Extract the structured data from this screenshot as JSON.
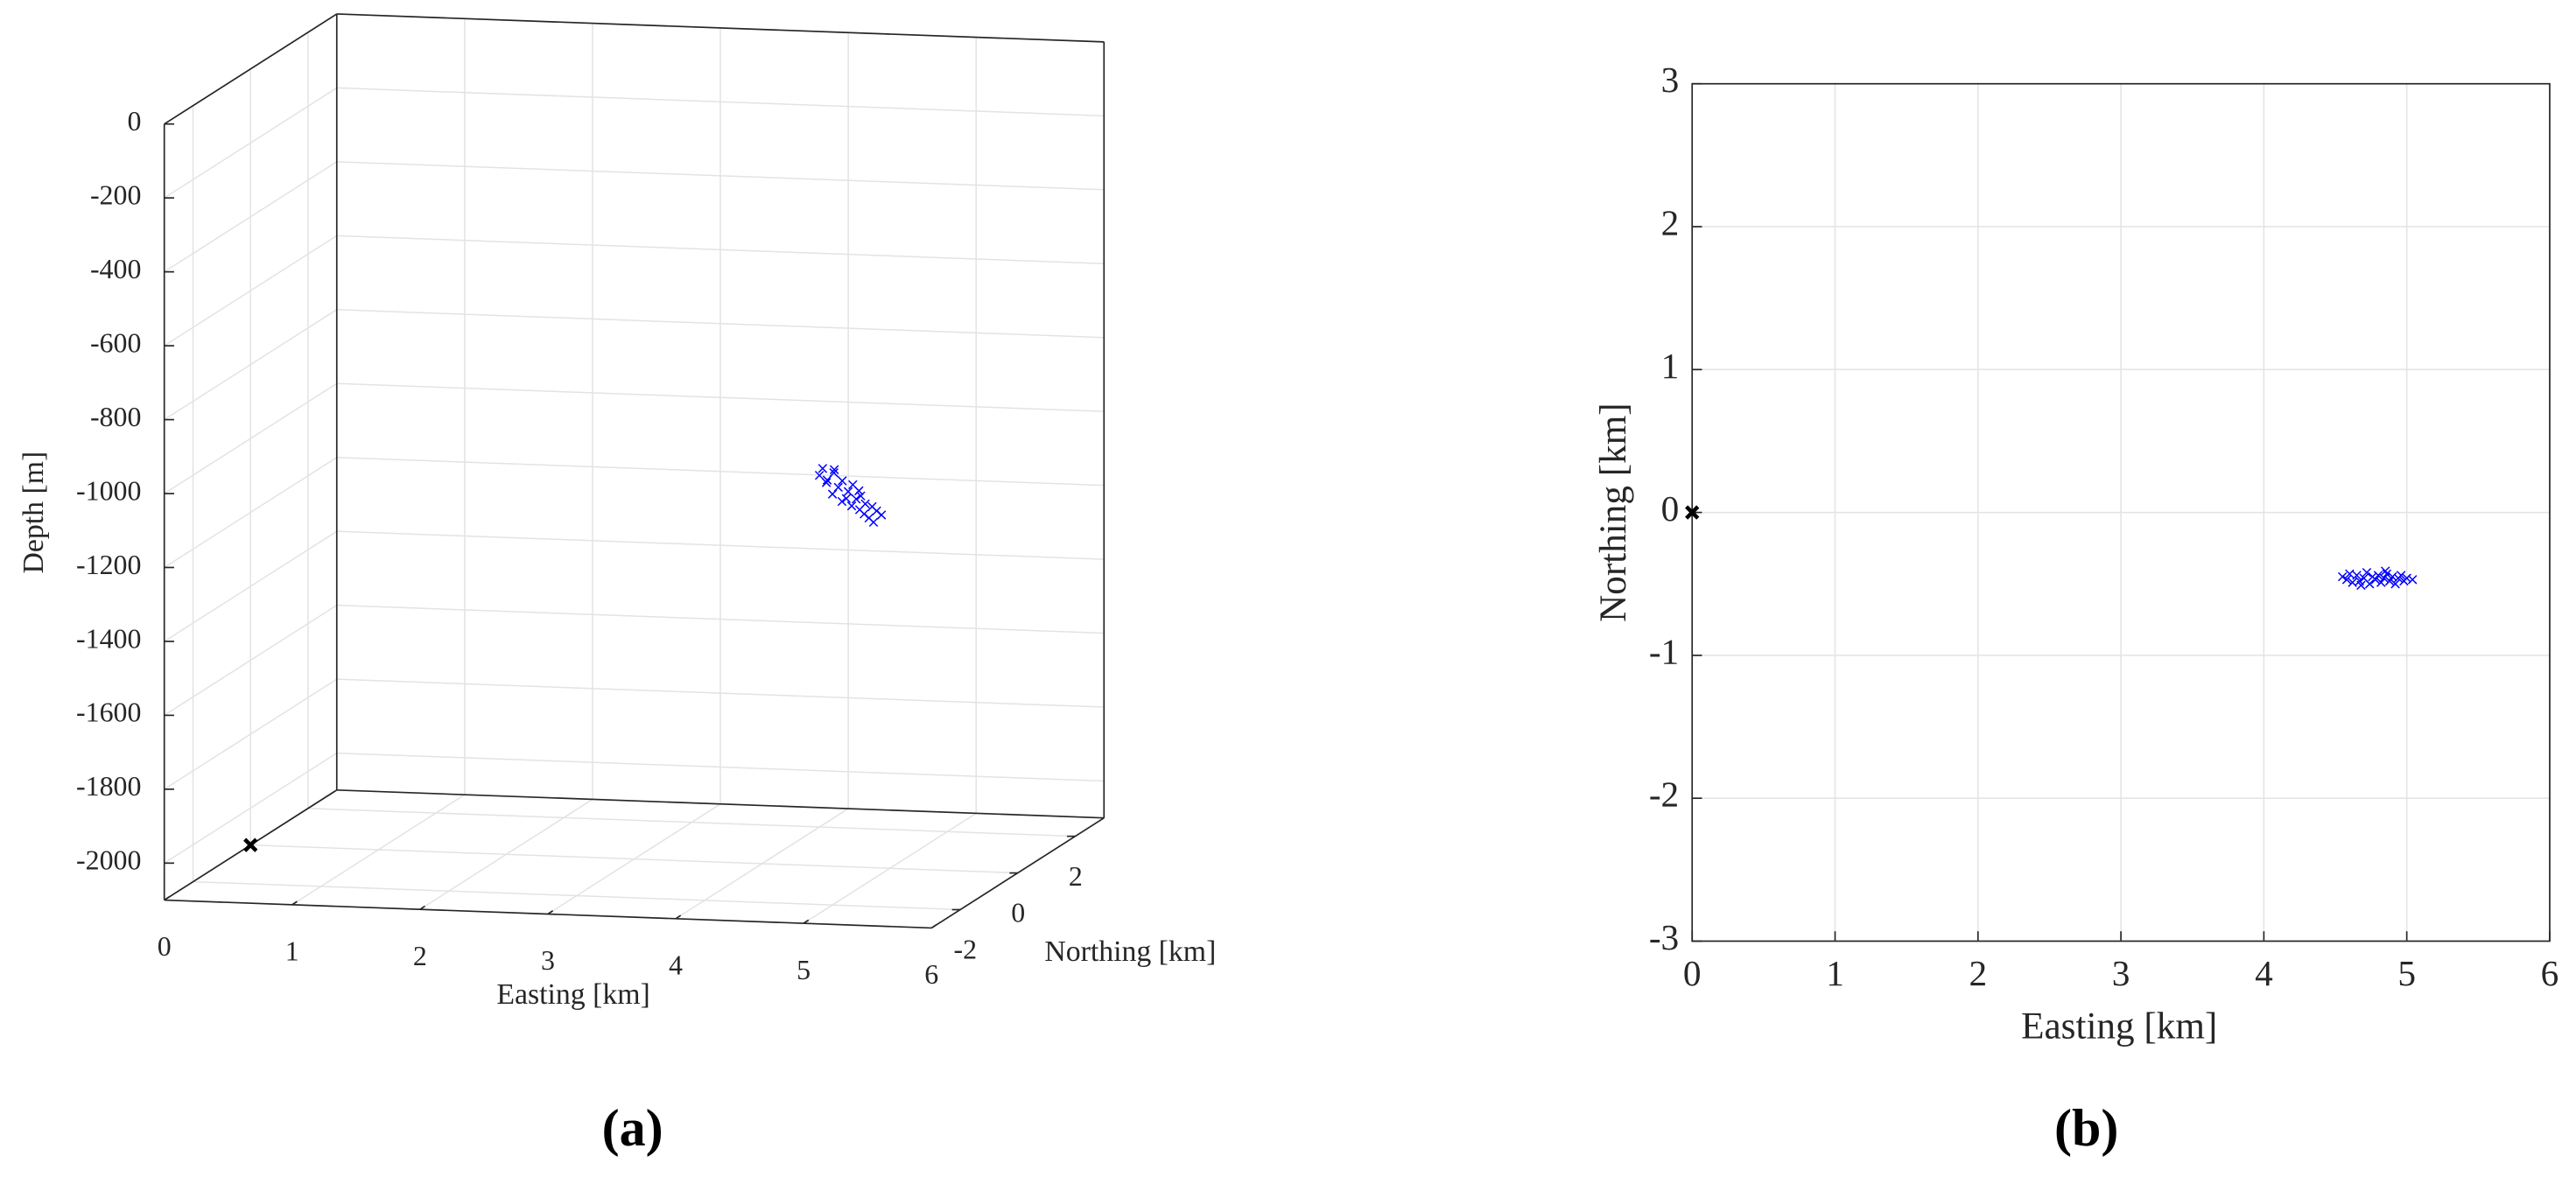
{
  "chart_data": [
    {
      "type": "scatter3d",
      "caption": "(a)",
      "xlabel": "Easting [km]",
      "ylabel": "Northing [km]",
      "zlabel": "Depth [m]",
      "xlim": [
        0,
        6
      ],
      "xticks": [
        0,
        1,
        2,
        3,
        4,
        5,
        6
      ],
      "ylim": [
        -3,
        3
      ],
      "yticks": [
        -2,
        0,
        2
      ],
      "zlim": [
        -2100,
        0
      ],
      "zticks": [
        0,
        -200,
        -400,
        -600,
        -800,
        -1000,
        -1200,
        -1400,
        -1600,
        -1800,
        -2000
      ],
      "grid": true,
      "series": [
        {
          "color": "#0000ff",
          "marker": "x",
          "x": [
            4.55,
            4.58,
            4.6,
            4.62,
            4.65,
            4.67,
            4.7,
            4.72,
            4.74,
            4.76,
            4.78,
            4.8,
            4.82,
            4.84,
            4.86,
            4.88,
            4.9,
            4.92,
            4.94,
            4.96,
            4.98,
            5.0,
            5.04,
            4.68,
            4.85
          ],
          "y": [
            -0.45,
            -0.47,
            -0.43,
            -0.49,
            -0.44,
            -0.48,
            -0.46,
            -0.42,
            -0.5,
            -0.45,
            -0.47,
            -0.44,
            -0.49,
            -0.46,
            -0.43,
            -0.48,
            -0.45,
            -0.5,
            -0.46,
            -0.44,
            -0.48,
            -0.46,
            -0.47,
            -0.51,
            -0.41
          ],
          "z": [
            -1020,
            -1000,
            -1040,
            -1030,
            -1070,
            -1010,
            -1050,
            -1090,
            -1030,
            -1080,
            -1060,
            -1100,
            -1040,
            -1080,
            -1110,
            -1070,
            -1120,
            -1090,
            -1130,
            -1100,
            -1140,
            -1110,
            -1120,
            -1000,
            -1060
          ]
        },
        {
          "color": "#000000",
          "marker": "x",
          "x": [
            0
          ],
          "y": [
            0
          ],
          "z": [
            -2100
          ]
        }
      ]
    },
    {
      "type": "scatter",
      "caption": "(b)",
      "xlabel": "Easting [km]",
      "ylabel": "Northing [km]",
      "xlim": [
        0,
        6
      ],
      "xticks": [
        0,
        1,
        2,
        3,
        4,
        5,
        6
      ],
      "ylim": [
        -3,
        3
      ],
      "yticks": [
        -3,
        -2,
        -1,
        0,
        1,
        2,
        3
      ],
      "grid": true,
      "series": [
        {
          "color": "#0000ff",
          "marker": "x",
          "x": [
            4.55,
            4.58,
            4.6,
            4.62,
            4.65,
            4.67,
            4.7,
            4.72,
            4.74,
            4.76,
            4.78,
            4.8,
            4.82,
            4.84,
            4.86,
            4.88,
            4.9,
            4.92,
            4.94,
            4.96,
            4.98,
            5.0,
            5.04,
            4.68,
            4.85
          ],
          "y": [
            -0.45,
            -0.47,
            -0.43,
            -0.49,
            -0.44,
            -0.48,
            -0.46,
            -0.42,
            -0.5,
            -0.45,
            -0.47,
            -0.44,
            -0.49,
            -0.46,
            -0.43,
            -0.48,
            -0.45,
            -0.5,
            -0.46,
            -0.44,
            -0.48,
            -0.46,
            -0.47,
            -0.51,
            -0.41
          ]
        },
        {
          "color": "#000000",
          "marker": "x",
          "x": [
            0
          ],
          "y": [
            0
          ]
        }
      ]
    }
  ]
}
